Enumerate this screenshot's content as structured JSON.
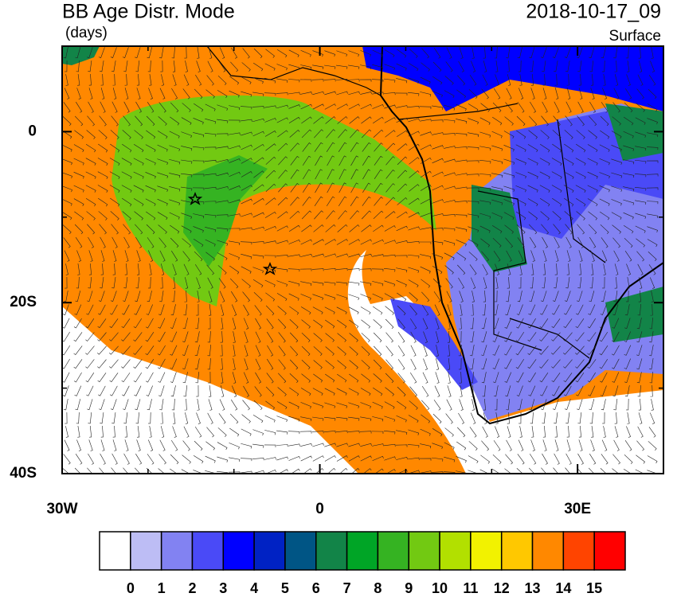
{
  "header": {
    "title": "BB Age Distr. Mode",
    "units": "(days)",
    "date": "2018-10-17_09",
    "level": "Surface"
  },
  "map": {
    "lat_range": [
      -40,
      10
    ],
    "lon_range": [
      -30,
      40
    ],
    "lat_ticks": [
      {
        "value": 0,
        "label": "0"
      },
      {
        "value": -20,
        "label": "20S"
      },
      {
        "value": -40,
        "label": "40S"
      }
    ],
    "lon_ticks": [
      {
        "value": -30,
        "label": "30W"
      },
      {
        "value": 0,
        "label": "0"
      },
      {
        "value": 30,
        "label": "30E"
      }
    ],
    "lat_minor_ticks": [
      10,
      -10,
      -30
    ],
    "lon_minor_ticks": [
      -20,
      -10,
      10,
      20,
      40
    ]
  },
  "colorbar": {
    "levels": [
      0,
      1,
      2,
      3,
      4,
      5,
      6,
      7,
      8,
      9,
      10,
      11,
      12,
      13,
      14,
      15
    ],
    "colors": [
      "#ffffff",
      "#bdbdf5",
      "#8282f2",
      "#4a4af7",
      "#0000ff",
      "#0022c4",
      "#005585",
      "#128448",
      "#00a526",
      "#35b322",
      "#72c912",
      "#b2e000",
      "#f2f200",
      "#ffc800",
      "#ff8800",
      "#ff4400",
      "#ff0000"
    ]
  }
}
